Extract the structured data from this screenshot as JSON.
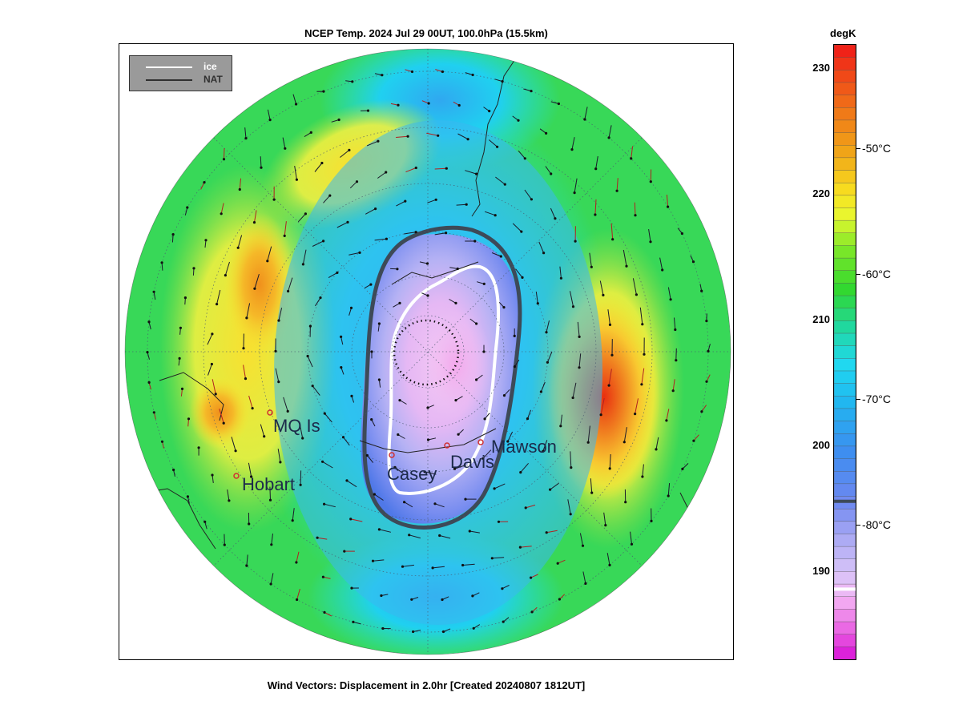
{
  "title": "NCEP Temp. 2024 Jul 29 00UT, 100.0hPa (15.5km)",
  "footer": "Wind Vectors: Displacement in 2.0hr [Created 20240807 1812UT]",
  "legend": {
    "items": [
      {
        "label": "ice",
        "color": "#ffffff"
      },
      {
        "label": "NAT",
        "color": "#303030"
      }
    ]
  },
  "colorbar": {
    "unit_label": "degK",
    "kelvin_ticks": [
      "230",
      "220",
      "210",
      "200",
      "190"
    ],
    "celsius_ticks": [
      "-50°C",
      "-60°C",
      "-70°C",
      "-80°C"
    ],
    "range_degK": [
      183,
      232
    ],
    "nat_threshold_degK": 195.6,
    "ice_threshold_degK": 188.6
  },
  "stations": [
    {
      "name": "MQ Is",
      "marker_color": "#d03030"
    },
    {
      "name": "Hobart",
      "marker_color": "#d03030"
    },
    {
      "name": "Casey",
      "marker_color": "#d03030"
    },
    {
      "name": "Davis",
      "marker_color": "#d03030"
    },
    {
      "name": "Mawson",
      "marker_color": "#d03030"
    }
  ],
  "colors": {
    "cold_core": "#f0c0f0",
    "vortex_blue": "#5a7ae8",
    "cyan": "#20d8f0",
    "green": "#40d840",
    "yellow": "#f8e830",
    "orange": "#f09018",
    "red": "#e83010",
    "nat_contour": "#3d4a58",
    "ice_contour": "#ffffff"
  }
}
